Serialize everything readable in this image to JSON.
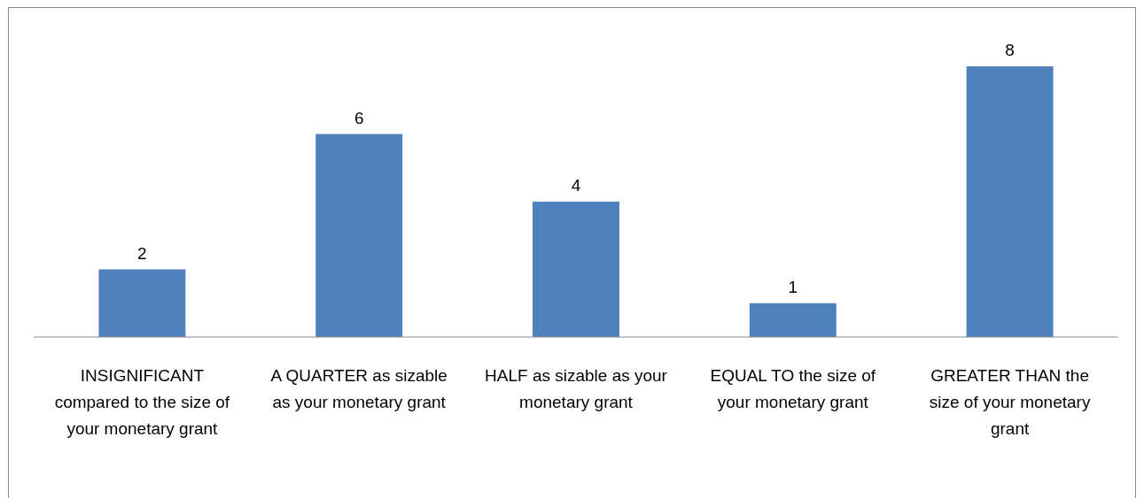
{
  "chart_data": {
    "type": "bar",
    "categories": [
      "INSIGNIFICANT compared to the size of your monetary grant",
      "A QUARTER as sizable as your monetary grant",
      "HALF as sizable as your monetary grant",
      "EQUAL TO the size of your monetary grant",
      "GREATER THAN the size of your monetary grant"
    ],
    "values": [
      2,
      6,
      4,
      1,
      8
    ],
    "color": "#4f81bd",
    "data_labels": true
  }
}
